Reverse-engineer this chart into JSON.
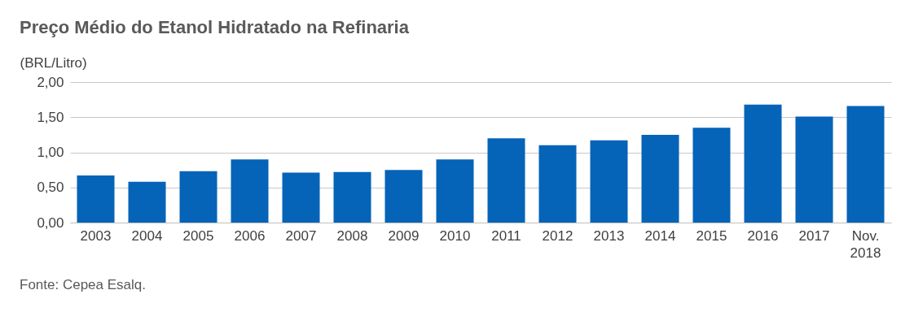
{
  "chart_data": {
    "type": "bar",
    "title": "Preço Médio do Etanol Hidratado na Refinaria",
    "ylabel": "(BRL/Litro)",
    "categories": [
      "2003",
      "2004",
      "2005",
      "2006",
      "2007",
      "2008",
      "2009",
      "2010",
      "2011",
      "2012",
      "2013",
      "2014",
      "2015",
      "2016",
      "2017",
      "Nov.\n2018"
    ],
    "values": [
      0.67,
      0.58,
      0.73,
      0.9,
      0.71,
      0.72,
      0.75,
      0.9,
      1.2,
      1.1,
      1.17,
      1.25,
      1.35,
      1.68,
      1.51,
      1.66
    ],
    "color": "#0563b8",
    "ylim": [
      0,
      2
    ],
    "yticks": [
      {
        "value": 0,
        "label": "0,00"
      },
      {
        "value": 0.5,
        "label": "0,50"
      },
      {
        "value": 1,
        "label": "1,00"
      },
      {
        "value": 1.5,
        "label": "1,50"
      },
      {
        "value": 2,
        "label": "2,00"
      }
    ],
    "grid": "y",
    "annotations": [
      "Fonte: Cepea Esalq."
    ]
  }
}
